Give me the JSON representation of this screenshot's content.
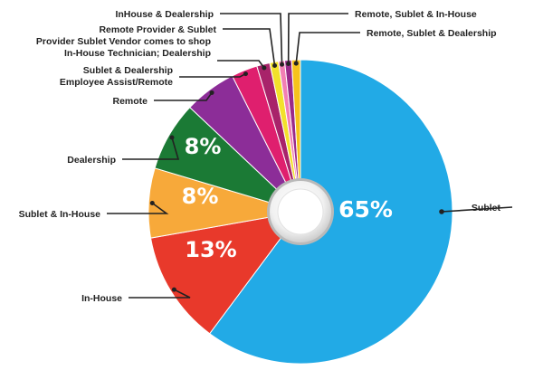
{
  "chart_data": {
    "type": "pie",
    "title": "",
    "start_angle_deg": 0,
    "direction": "clockwise",
    "donut_hole": true,
    "slices": [
      {
        "label": "Sublet",
        "value": 65,
        "value_label": "65%",
        "color": "#22aae6"
      },
      {
        "label": "In-House",
        "value": 13,
        "value_label": "13%",
        "color": "#e8392b"
      },
      {
        "label": "Sublet & In-House",
        "value": 8,
        "value_label": "8%",
        "color": "#f7a93a"
      },
      {
        "label": "Dealership",
        "value": 8,
        "value_label": "8%",
        "color": "#1b7a35"
      },
      {
        "label": "Remote",
        "value": 6,
        "value_label": "",
        "color": "#8c2d98"
      },
      {
        "label": "Sublet & Dealership\nEmployee Assist/Remote",
        "value": 3,
        "value_label": "",
        "color": "#df1f6e"
      },
      {
        "label": "Provider Sublet Vendor comes to shop\nIn-House Technician; Dealership",
        "value": 1.5,
        "value_label": "",
        "color": "#a8236a"
      },
      {
        "label": "Remote Provider & Sublet",
        "value": 1,
        "value_label": "",
        "color": "#f2e12b"
      },
      {
        "label": "InHouse & Dealership",
        "value": 0.7,
        "value_label": "",
        "color": "#f27fb4"
      },
      {
        "label": "Remote, Sublet & In-House",
        "value": 0.8,
        "value_label": "",
        "color": "#9a2a8a"
      },
      {
        "label": "Remote, Sublet & Dealership",
        "value": 1,
        "value_label": "",
        "color": "#f6c21c"
      }
    ]
  }
}
